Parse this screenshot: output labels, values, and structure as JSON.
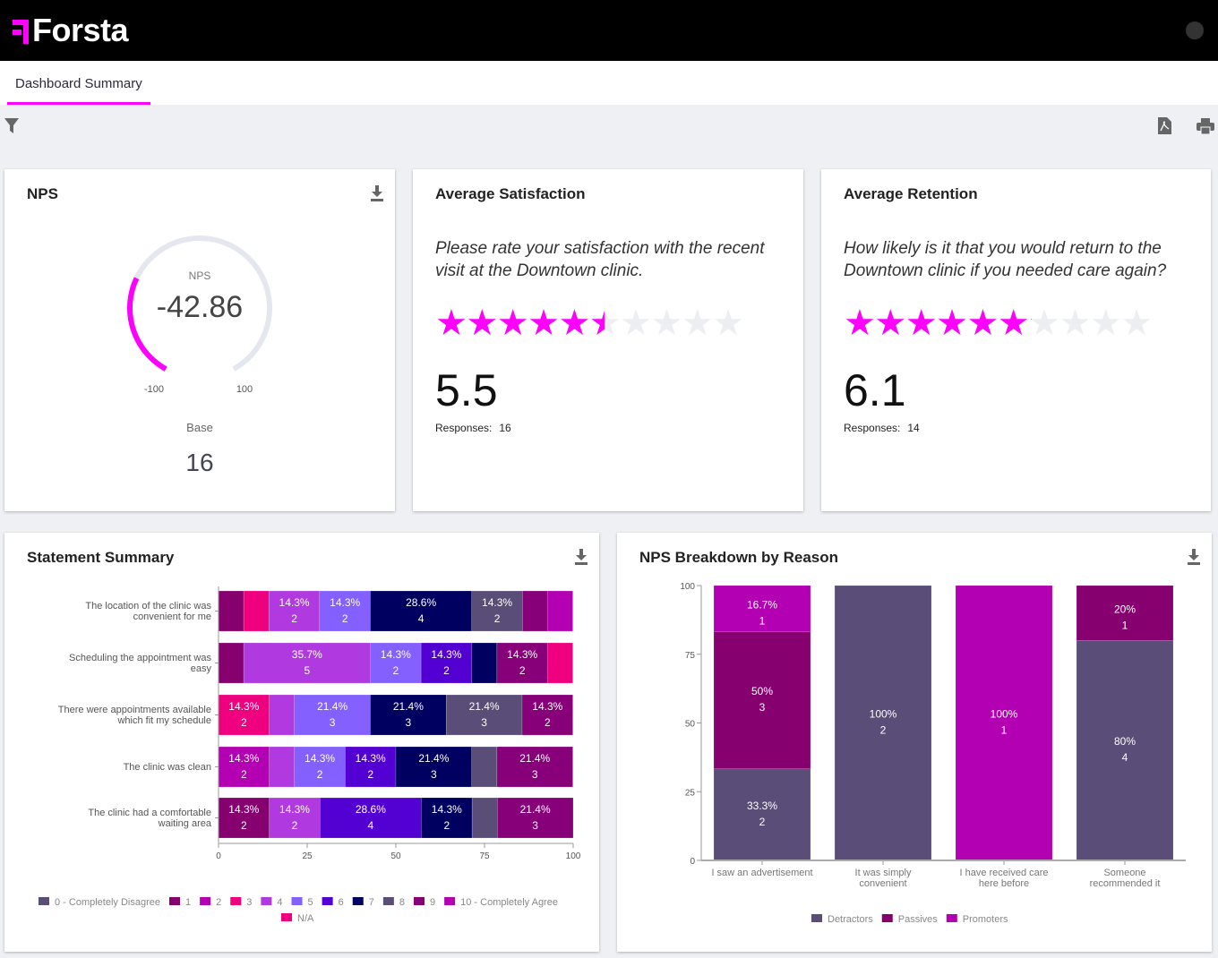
{
  "app": {
    "brand": "Forsta",
    "tab": "Dashboard Summary"
  },
  "nps": {
    "title": "NPS",
    "gauge_label": "NPS",
    "value": "-42.86",
    "value_num": -42.86,
    "min_label": "-100",
    "max_label": "100",
    "base_label": "Base",
    "base": "16"
  },
  "satisfaction": {
    "title": "Average Satisfaction",
    "question": "Please rate your satisfaction with the recent visit at the Downtown clinic.",
    "rating": 5.5,
    "max": 10,
    "score": "5.5",
    "responses_label": "Responses:",
    "responses": "16"
  },
  "retention": {
    "title": "Average Retention",
    "question": "How likely is it that you would return to the Downtown clinic if you needed care again?",
    "rating": 6.1,
    "max": 10,
    "score": "6.1",
    "responses_label": "Responses:",
    "responses": "14"
  },
  "colors": {
    "accent": "#ff00ff",
    "0": "#5a4e78",
    "1": "#87006f",
    "2": "#b300b3",
    "3": "#ee007f",
    "4": "#b03ae0",
    "5": "#8360ff",
    "6": "#5300d3",
    "7": "#000060",
    "8": "#5a4e78",
    "9": "#87007a",
    "10": "#b300b3",
    "NA": "#ee007f"
  },
  "chart_data": [
    {
      "type": "bar",
      "orientation": "horizontal",
      "stacked": true,
      "title": "Statement Summary",
      "xlim": [
        0,
        100
      ],
      "xticks": [
        "0",
        "25",
        "50",
        "75",
        "100"
      ],
      "legend": [
        {
          "key": "0",
          "label": "0 - Completely Disagree"
        },
        {
          "key": "1",
          "label": "1"
        },
        {
          "key": "2",
          "label": "2"
        },
        {
          "key": "3",
          "label": "3"
        },
        {
          "key": "4",
          "label": "4"
        },
        {
          "key": "5",
          "label": "5"
        },
        {
          "key": "6",
          "label": "6"
        },
        {
          "key": "7",
          "label": "7"
        },
        {
          "key": "8",
          "label": "8"
        },
        {
          "key": "9",
          "label": "9"
        },
        {
          "key": "10",
          "label": "10 - Completely Agree"
        },
        {
          "key": "NA",
          "label": "N/A"
        }
      ],
      "rows": [
        {
          "label": [
            "The location of the clinic was",
            "convenient for me"
          ],
          "segments": [
            {
              "key": "1",
              "pct": 7.1,
              "n": 1
            },
            {
              "key": "3",
              "pct": 7.1,
              "n": 1
            },
            {
              "key": "4",
              "pct": 14.3,
              "n": 2
            },
            {
              "key": "5",
              "pct": 14.3,
              "n": 2
            },
            {
              "key": "7",
              "pct": 28.6,
              "n": 4
            },
            {
              "key": "8",
              "pct": 14.3,
              "n": 2
            },
            {
              "key": "9",
              "pct": 7.1,
              "n": 1
            },
            {
              "key": "10",
              "pct": 7.1,
              "n": 1
            }
          ]
        },
        {
          "label": [
            "Scheduling the appointment was",
            "easy"
          ],
          "segments": [
            {
              "key": "1",
              "pct": 7.1,
              "n": 1
            },
            {
              "key": "4",
              "pct": 35.7,
              "n": 5
            },
            {
              "key": "5",
              "pct": 14.3,
              "n": 2
            },
            {
              "key": "6",
              "pct": 14.3,
              "n": 2
            },
            {
              "key": "7",
              "pct": 7.1,
              "n": 1
            },
            {
              "key": "9",
              "pct": 14.3,
              "n": 2
            },
            {
              "key": "NA",
              "pct": 7.1,
              "n": 1
            }
          ]
        },
        {
          "label": [
            "There were appointments available",
            "which fit my schedule"
          ],
          "segments": [
            {
              "key": "3",
              "pct": 14.3,
              "n": 2
            },
            {
              "key": "4",
              "pct": 7.1,
              "n": 1
            },
            {
              "key": "5",
              "pct": 21.4,
              "n": 3
            },
            {
              "key": "7",
              "pct": 21.4,
              "n": 3
            },
            {
              "key": "8",
              "pct": 21.4,
              "n": 3
            },
            {
              "key": "9",
              "pct": 14.3,
              "n": 2
            }
          ]
        },
        {
          "label": [
            "The clinic was clean"
          ],
          "segments": [
            {
              "key": "2",
              "pct": 14.3,
              "n": 2
            },
            {
              "key": "4",
              "pct": 7.1,
              "n": 1
            },
            {
              "key": "5",
              "pct": 14.3,
              "n": 2
            },
            {
              "key": "6",
              "pct": 14.3,
              "n": 2
            },
            {
              "key": "7",
              "pct": 21.4,
              "n": 3
            },
            {
              "key": "8",
              "pct": 7.1,
              "n": 1
            },
            {
              "key": "9",
              "pct": 21.4,
              "n": 3
            }
          ]
        },
        {
          "label": [
            "The clinic had a comfortable",
            "waiting area"
          ],
          "segments": [
            {
              "key": "1",
              "pct": 14.3,
              "n": 2
            },
            {
              "key": "4",
              "pct": 14.3,
              "n": 2
            },
            {
              "key": "6",
              "pct": 28.6,
              "n": 4
            },
            {
              "key": "7",
              "pct": 14.3,
              "n": 2
            },
            {
              "key": "8",
              "pct": 7.1,
              "n": 1
            },
            {
              "key": "9",
              "pct": 21.4,
              "n": 3
            }
          ]
        }
      ]
    },
    {
      "type": "bar",
      "stacked": true,
      "title": "NPS Breakdown by Reason",
      "ylim": [
        0,
        100
      ],
      "yticks": [
        "0",
        "25",
        "50",
        "75",
        "100"
      ],
      "series_colors": {
        "Detractors": "#5a4e78",
        "Passives": "#87006f",
        "Promoters": "#b300b3"
      },
      "legend": [
        "Detractors",
        "Passives",
        "Promoters"
      ],
      "categories": [
        {
          "label": [
            "I saw an advertisement"
          ],
          "segments": [
            {
              "series": "Detractors",
              "pct": 33.3,
              "n": 2,
              "label": "33.3%"
            },
            {
              "series": "Passives",
              "pct": 50,
              "n": 3,
              "label": "50%"
            },
            {
              "series": "Promoters",
              "pct": 16.7,
              "n": 1,
              "label": "16.7%"
            }
          ]
        },
        {
          "label": [
            "It was simply",
            "convenient"
          ],
          "segments": [
            {
              "series": "Detractors",
              "pct": 100,
              "n": 2,
              "label": "100%"
            }
          ]
        },
        {
          "label": [
            "I have received care",
            "here before"
          ],
          "segments": [
            {
              "series": "Promoters",
              "pct": 100,
              "n": 1,
              "label": "100%"
            }
          ]
        },
        {
          "label": [
            "Someone",
            "recommended it"
          ],
          "segments": [
            {
              "series": "Detractors",
              "pct": 80,
              "n": 4,
              "label": "80%"
            },
            {
              "series": "Passives",
              "pct": 20,
              "n": 1,
              "label": "20%"
            }
          ]
        }
      ]
    }
  ]
}
